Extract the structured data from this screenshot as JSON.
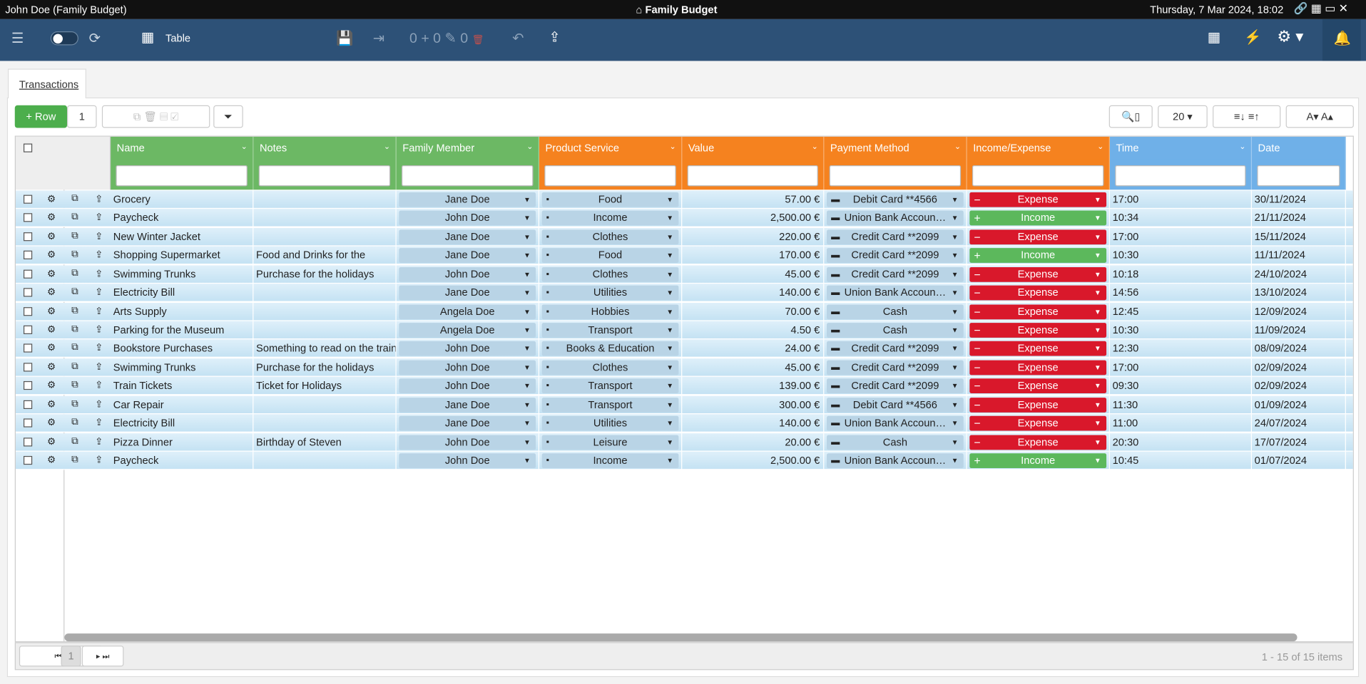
{
  "window": {
    "title": "John Doe (Family Budget)",
    "app": "Family Budget",
    "datetime": "Thursday, 7 Mar 2024, 18:02"
  },
  "toolbar": {
    "view": "Table",
    "counts": [
      0,
      0,
      0
    ]
  },
  "tab": "Transactions",
  "grid_toolbar": {
    "add": "Row",
    "count": 1,
    "page_size": 20
  },
  "table": {
    "columns": [
      "Name",
      "Notes",
      "Family Member",
      "Product Service",
      "Value",
      "Payment Method",
      "Income/Expense",
      "Time",
      "Date"
    ],
    "rows": [
      {
        "name": "Grocery",
        "member": "Jane Doe",
        "product": "Food",
        "value": "57.00 €",
        "payment": "Debit Card **4566",
        "type": "Expense",
        "time": "17:00",
        "date": "30/11/2024"
      },
      {
        "name": "Paycheck",
        "member": "John Doe",
        "product": "Income",
        "value": "2,500.00 €",
        "payment": "Union Bank Accoun…",
        "type": "Income",
        "time": "10:34",
        "date": "21/11/2024"
      },
      {
        "name": "New Winter Jacket",
        "member": "Jane Doe",
        "product": "Clothes",
        "value": "220.00 €",
        "payment": "Credit Card **2099",
        "type": "Expense",
        "time": "17:00",
        "date": "15/11/2024"
      },
      {
        "name": "Shopping Supermarket",
        "notes": "Food and Drinks for the",
        "member": "Jane Doe",
        "product": "Food",
        "value": "170.00 €",
        "payment": "Credit Card **2099",
        "type": "Income",
        "time": "10:30",
        "date": "11/11/2024"
      },
      {
        "name": "Swimming Trunks",
        "notes": "Purchase for the holidays",
        "member": "John Doe",
        "product": "Clothes",
        "value": "45.00 €",
        "payment": "Credit Card **2099",
        "type": "Expense",
        "time": "10:18",
        "date": "24/10/2024"
      },
      {
        "name": "Electricity Bill",
        "member": "Jane Doe",
        "product": "Utilities",
        "value": "140.00 €",
        "payment": "Union Bank Accoun…",
        "type": "Expense",
        "time": "14:56",
        "date": "13/10/2024"
      },
      {
        "name": "Arts Supply",
        "member": "Angela Doe",
        "product": "Hobbies",
        "value": "70.00 €",
        "payment": "Cash",
        "type": "Expense",
        "time": "12:45",
        "date": "12/09/2024"
      },
      {
        "name": "Parking for the Museum",
        "member": "Angela Doe",
        "product": "Transport",
        "value": "4.50 €",
        "payment": "Cash",
        "type": "Expense",
        "time": "10:30",
        "date": "11/09/2024"
      },
      {
        "name": "Bookstore Purchases",
        "notes": "Something to read on the train",
        "member": "John Doe",
        "product": "Books & Education",
        "value": "24.00 €",
        "payment": "Credit Card **2099",
        "type": "Expense",
        "time": "12:30",
        "date": "08/09/2024"
      },
      {
        "name": "Swimming Trunks",
        "notes": "Purchase for the holidays",
        "member": "John Doe",
        "product": "Clothes",
        "value": "45.00 €",
        "payment": "Credit Card **2099",
        "type": "Expense",
        "time": "17:00",
        "date": "02/09/2024"
      },
      {
        "name": "Train Tickets",
        "notes": "Ticket for Holidays",
        "member": "John Doe",
        "product": "Transport",
        "value": "139.00 €",
        "payment": "Credit Card **2099",
        "type": "Expense",
        "time": "09:30",
        "date": "02/09/2024"
      },
      {
        "name": "Car Repair",
        "member": "Jane Doe",
        "product": "Transport",
        "value": "300.00 €",
        "payment": "Debit Card **4566",
        "type": "Expense",
        "time": "11:30",
        "date": "01/09/2024"
      },
      {
        "name": "Electricity Bill",
        "member": "Jane Doe",
        "product": "Utilities",
        "value": "140.00 €",
        "payment": "Union Bank Accoun…",
        "type": "Expense",
        "time": "11:00",
        "date": "24/07/2024"
      },
      {
        "name": "Pizza Dinner",
        "notes": "Birthday of Steven",
        "member": "John Doe",
        "product": "Leisure",
        "value": "20.00 €",
        "payment": "Cash",
        "type": "Expense",
        "time": "20:30",
        "date": "17/07/2024"
      },
      {
        "name": "Paycheck",
        "member": "John Doe",
        "product": "Income",
        "value": "2,500.00 €",
        "payment": "Union Bank Accoun…",
        "type": "Income",
        "time": "10:45",
        "date": "01/07/2024"
      }
    ]
  },
  "pager": {
    "page": 1,
    "summary": "1 - 15 of 15 items"
  }
}
